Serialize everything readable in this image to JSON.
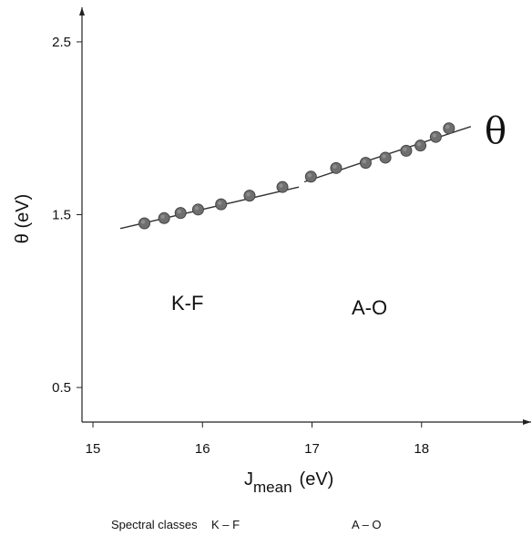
{
  "chart_data": {
    "type": "scatter",
    "title": "",
    "xlabel": "J",
    "xlabel_subscript": "mean",
    "xlabel_unit": "(eV)",
    "ylabel": "θ (eV)",
    "xlim": [
      14.9,
      19.0
    ],
    "ylim": [
      0.3,
      2.7
    ],
    "x_ticks": [
      15,
      16,
      17,
      18
    ],
    "y_ticks": [
      0.5,
      1.5,
      2.5
    ],
    "x_tick_labels": [
      "15",
      "16",
      "17",
      "18"
    ],
    "y_tick_labels": [
      "0.5",
      "1.5",
      "2.5"
    ],
    "grid": false,
    "legend": "none",
    "series": [
      {
        "points": [
          {
            "x": 15.47,
            "y": 1.45
          },
          {
            "x": 15.65,
            "y": 1.48
          },
          {
            "x": 15.8,
            "y": 1.51
          },
          {
            "x": 15.96,
            "y": 1.53
          },
          {
            "x": 16.17,
            "y": 1.56
          },
          {
            "x": 16.43,
            "y": 1.61
          },
          {
            "x": 16.73,
            "y": 1.66
          },
          {
            "x": 16.99,
            "y": 1.72
          },
          {
            "x": 17.22,
            "y": 1.77
          },
          {
            "x": 17.49,
            "y": 1.8
          },
          {
            "x": 17.67,
            "y": 1.83
          },
          {
            "x": 17.86,
            "y": 1.87
          },
          {
            "x": 17.99,
            "y": 1.9
          },
          {
            "x": 18.13,
            "y": 1.95
          },
          {
            "x": 18.25,
            "y": 2.0
          }
        ],
        "color": "#6f6f6f"
      }
    ],
    "fit_lines": [
      {
        "x": [
          15.25,
          16.88
        ],
        "y": [
          1.42,
          1.66
        ]
      },
      {
        "x": [
          16.93,
          18.45
        ],
        "y": [
          1.69,
          2.01
        ]
      }
    ],
    "annotations": {
      "theta_symbol": "θ",
      "region_kf": "K-F",
      "region_ao": "A-O"
    }
  },
  "caption": {
    "label": "Spectral classes",
    "kf": "K – F",
    "ao": "A – O"
  }
}
